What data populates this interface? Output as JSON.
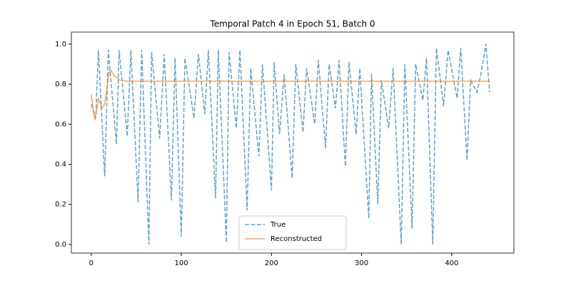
{
  "chart_data": {
    "type": "line",
    "title": "Temporal Patch 4 in Epoch 51, Batch 0",
    "xlim": [
      -22,
      469
    ],
    "ylim": [
      -0.043,
      1.06
    ],
    "xticks": [
      0,
      100,
      200,
      300,
      400
    ],
    "yticks": [
      {
        "value": 0,
        "label": "0.0"
      },
      0.2,
      0.4,
      0.6,
      0.8,
      {
        "value": 1,
        "label": "1.0"
      }
    ],
    "legend": "lower center",
    "series": [
      {
        "name": "True",
        "color": "#1f77b4",
        "linestyle": "dashed",
        "x": [
          0,
          5,
          8,
          15,
          19,
          28,
          31,
          40,
          44,
          52,
          56,
          64,
          67,
          76,
          81,
          89,
          93,
          100,
          104,
          114,
          119,
          126,
          130,
          138,
          141,
          150,
          153,
          161,
          165,
          173,
          177,
          186,
          190,
          200,
          203,
          209,
          214,
          223,
          227,
          235,
          239,
          248,
          252,
          260,
          264,
          271,
          275,
          282,
          286,
          294,
          298,
          308,
          311,
          318,
          322,
          330,
          335,
          344,
          348,
          356,
          360,
          368,
          372,
          379,
          383,
          391,
          396,
          406,
          410,
          417,
          421,
          428,
          432,
          438,
          442
        ],
        "values": [
          0.7,
          0.63,
          0.97,
          0.34,
          0.97,
          0.5,
          0.97,
          0.54,
          0.97,
          0.21,
          0.97,
          0.0,
          0.96,
          0.53,
          0.95,
          0.22,
          0.93,
          0.04,
          0.93,
          0.63,
          0.95,
          0.65,
          0.97,
          0.23,
          0.97,
          0.01,
          0.96,
          0.58,
          0.97,
          0.17,
          0.88,
          0.44,
          0.9,
          0.27,
          0.91,
          0.55,
          0.85,
          0.33,
          0.9,
          0.56,
          0.88,
          0.6,
          0.92,
          0.48,
          0.9,
          0.68,
          0.92,
          0.39,
          0.91,
          0.55,
          0.88,
          0.13,
          0.85,
          0.2,
          0.82,
          0.58,
          0.88,
          0.0,
          0.9,
          0.08,
          0.9,
          0.72,
          0.93,
          0.0,
          0.98,
          0.69,
          0.97,
          0.73,
          0.98,
          0.42,
          0.82,
          0.76,
          0.84,
          1.0,
          0.76
        ]
      },
      {
        "name": "Reconstructed",
        "color": "#ff7f0e",
        "linestyle": "solid",
        "x": [
          0,
          2,
          4,
          6,
          8,
          12,
          15,
          18,
          20,
          22,
          26,
          32,
          40,
          100,
          200,
          300,
          400,
          442
        ],
        "values": [
          0.75,
          0.68,
          0.62,
          0.67,
          0.73,
          0.68,
          0.7,
          0.8,
          0.86,
          0.87,
          0.84,
          0.82,
          0.815,
          0.815,
          0.815,
          0.815,
          0.815,
          0.815
        ]
      }
    ]
  }
}
